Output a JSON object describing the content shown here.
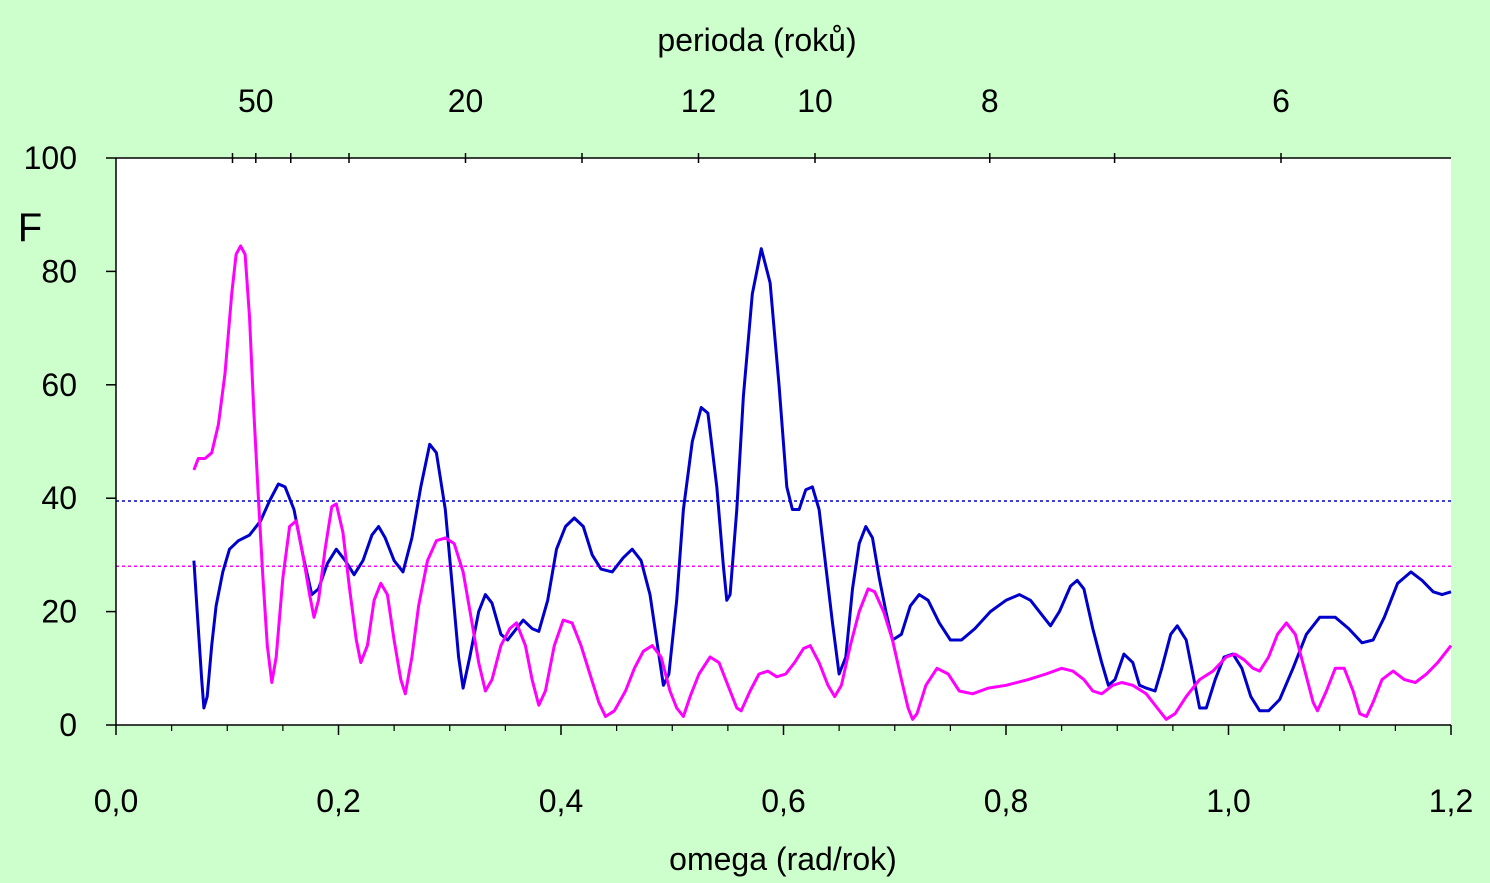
{
  "colors": {
    "background": "#CCFFCC",
    "plot_area": "#FFFFFF",
    "blue_series": "#0000CC",
    "magenta_series": "#FF00FF"
  },
  "chart_data": {
    "type": "line",
    "title": "",
    "xlabel": "omega (rad/rok)",
    "ylabel": "F",
    "top_xlabel": "perioda (roků)",
    "xlim": [
      0.0,
      1.2
    ],
    "ylim": [
      0,
      100
    ],
    "x_ticks": [
      "0,0",
      "0,2",
      "0,4",
      "0,6",
      "0,8",
      "1,0",
      "1,2"
    ],
    "y_ticks": [
      "0",
      "20",
      "40",
      "60",
      "80",
      "100"
    ],
    "top_ticks": [
      {
        "label": "50",
        "period": 50
      },
      {
        "label": "20",
        "period": 20
      },
      {
        "label": "12",
        "period": 12
      },
      {
        "label": "10",
        "period": 10
      },
      {
        "label": "8",
        "period": 8
      },
      {
        "label": "6",
        "period": 6
      }
    ],
    "top_minor_periods": [
      60,
      40,
      30,
      15,
      7
    ],
    "thresholds": [
      {
        "y": 39.5,
        "color": "#0000CC"
      },
      {
        "y": 28,
        "color": "#FF00FF"
      }
    ],
    "grid": false,
    "legend": "none",
    "series": [
      {
        "color": "#0000CC",
        "points": [
          [
            0.07,
            29
          ],
          [
            0.073,
            20
          ],
          [
            0.077,
            8
          ],
          [
            0.079,
            3
          ],
          [
            0.082,
            5
          ],
          [
            0.086,
            14
          ],
          [
            0.09,
            21
          ],
          [
            0.096,
            27
          ],
          [
            0.102,
            31
          ],
          [
            0.11,
            32.5
          ],
          [
            0.12,
            33.5
          ],
          [
            0.13,
            36
          ],
          [
            0.138,
            39.5
          ],
          [
            0.146,
            42.5
          ],
          [
            0.152,
            42
          ],
          [
            0.16,
            38
          ],
          [
            0.168,
            30
          ],
          [
            0.176,
            23
          ],
          [
            0.182,
            24
          ],
          [
            0.19,
            28.5
          ],
          [
            0.198,
            31
          ],
          [
            0.206,
            29
          ],
          [
            0.214,
            26.5
          ],
          [
            0.222,
            29
          ],
          [
            0.23,
            33.5
          ],
          [
            0.236,
            35
          ],
          [
            0.242,
            33
          ],
          [
            0.25,
            29
          ],
          [
            0.258,
            27
          ],
          [
            0.266,
            33
          ],
          [
            0.274,
            42
          ],
          [
            0.282,
            49.5
          ],
          [
            0.288,
            48
          ],
          [
            0.296,
            38
          ],
          [
            0.302,
            25
          ],
          [
            0.308,
            12
          ],
          [
            0.312,
            6.5
          ],
          [
            0.318,
            12
          ],
          [
            0.326,
            20
          ],
          [
            0.332,
            23
          ],
          [
            0.338,
            21.5
          ],
          [
            0.346,
            16
          ],
          [
            0.352,
            15
          ],
          [
            0.36,
            17
          ],
          [
            0.366,
            18.5
          ],
          [
            0.374,
            17
          ],
          [
            0.38,
            16.5
          ],
          [
            0.388,
            22
          ],
          [
            0.396,
            31
          ],
          [
            0.404,
            35
          ],
          [
            0.412,
            36.5
          ],
          [
            0.42,
            35
          ],
          [
            0.428,
            30
          ],
          [
            0.436,
            27.5
          ],
          [
            0.446,
            27
          ],
          [
            0.456,
            29.5
          ],
          [
            0.464,
            31
          ],
          [
            0.472,
            29
          ],
          [
            0.48,
            23
          ],
          [
            0.486,
            15
          ],
          [
            0.492,
            7
          ],
          [
            0.497,
            9
          ],
          [
            0.504,
            22
          ],
          [
            0.51,
            38
          ],
          [
            0.518,
            50
          ],
          [
            0.526,
            56
          ],
          [
            0.532,
            55
          ],
          [
            0.54,
            42
          ],
          [
            0.546,
            28
          ],
          [
            0.549,
            22
          ],
          [
            0.552,
            23
          ],
          [
            0.558,
            38
          ],
          [
            0.564,
            58
          ],
          [
            0.572,
            76
          ],
          [
            0.58,
            84
          ],
          [
            0.588,
            78
          ],
          [
            0.596,
            60
          ],
          [
            0.603,
            42
          ],
          [
            0.608,
            38
          ],
          [
            0.614,
            38
          ],
          [
            0.62,
            41.5
          ],
          [
            0.626,
            42
          ],
          [
            0.632,
            38
          ],
          [
            0.638,
            28
          ],
          [
            0.644,
            18
          ],
          [
            0.65,
            9
          ],
          [
            0.656,
            12
          ],
          [
            0.662,
            24
          ],
          [
            0.668,
            32
          ],
          [
            0.674,
            35
          ],
          [
            0.68,
            33
          ],
          [
            0.686,
            26
          ],
          [
            0.692,
            20
          ],
          [
            0.698,
            15
          ],
          [
            0.706,
            16
          ],
          [
            0.714,
            21
          ],
          [
            0.722,
            23
          ],
          [
            0.73,
            22
          ],
          [
            0.74,
            18
          ],
          [
            0.75,
            15
          ],
          [
            0.76,
            15
          ],
          [
            0.772,
            17
          ],
          [
            0.786,
            20
          ],
          [
            0.8,
            22
          ],
          [
            0.812,
            23
          ],
          [
            0.822,
            22
          ],
          [
            0.834,
            19
          ],
          [
            0.84,
            17.5
          ],
          [
            0.848,
            20
          ],
          [
            0.858,
            24.5
          ],
          [
            0.864,
            25.5
          ],
          [
            0.87,
            24
          ],
          [
            0.878,
            17
          ],
          [
            0.886,
            11
          ],
          [
            0.892,
            7
          ],
          [
            0.898,
            8
          ],
          [
            0.906,
            12.5
          ],
          [
            0.914,
            11
          ],
          [
            0.92,
            7
          ],
          [
            0.926,
            6.5
          ],
          [
            0.934,
            6
          ],
          [
            0.94,
            10
          ],
          [
            0.948,
            16
          ],
          [
            0.954,
            17.5
          ],
          [
            0.962,
            15
          ],
          [
            0.968,
            9
          ],
          [
            0.974,
            3
          ],
          [
            0.98,
            3
          ],
          [
            0.988,
            8
          ],
          [
            0.996,
            12
          ],
          [
            1.004,
            12.5
          ],
          [
            1.012,
            10
          ],
          [
            1.02,
            5
          ],
          [
            1.028,
            2.5
          ],
          [
            1.036,
            2.5
          ],
          [
            1.046,
            4.5
          ],
          [
            1.058,
            10
          ],
          [
            1.07,
            16
          ],
          [
            1.082,
            19
          ],
          [
            1.096,
            19
          ],
          [
            1.108,
            17
          ],
          [
            1.12,
            14.5
          ],
          [
            1.13,
            15
          ],
          [
            1.14,
            19
          ],
          [
            1.152,
            25
          ],
          [
            1.164,
            27
          ],
          [
            1.174,
            25.5
          ],
          [
            1.184,
            23.5
          ],
          [
            1.192,
            23
          ],
          [
            1.2,
            23.5
          ]
        ]
      },
      {
        "color": "#FF00FF",
        "points": [
          [
            0.07,
            45
          ],
          [
            0.074,
            47
          ],
          [
            0.08,
            47
          ],
          [
            0.086,
            48
          ],
          [
            0.092,
            53
          ],
          [
            0.098,
            62
          ],
          [
            0.104,
            76
          ],
          [
            0.108,
            83
          ],
          [
            0.112,
            84.5
          ],
          [
            0.116,
            83
          ],
          [
            0.12,
            72
          ],
          [
            0.124,
            55
          ],
          [
            0.128,
            40
          ],
          [
            0.132,
            26
          ],
          [
            0.136,
            14
          ],
          [
            0.14,
            7.5
          ],
          [
            0.144,
            12
          ],
          [
            0.15,
            26
          ],
          [
            0.156,
            35
          ],
          [
            0.162,
            36
          ],
          [
            0.168,
            30
          ],
          [
            0.174,
            23
          ],
          [
            0.178,
            19
          ],
          [
            0.182,
            22
          ],
          [
            0.188,
            31
          ],
          [
            0.194,
            38.5
          ],
          [
            0.198,
            39
          ],
          [
            0.204,
            34
          ],
          [
            0.21,
            24
          ],
          [
            0.216,
            15
          ],
          [
            0.22,
            11
          ],
          [
            0.226,
            14
          ],
          [
            0.232,
            22
          ],
          [
            0.238,
            25
          ],
          [
            0.244,
            23
          ],
          [
            0.25,
            15
          ],
          [
            0.256,
            8
          ],
          [
            0.26,
            5.5
          ],
          [
            0.266,
            12
          ],
          [
            0.272,
            21
          ],
          [
            0.28,
            29
          ],
          [
            0.288,
            32.5
          ],
          [
            0.296,
            33
          ],
          [
            0.304,
            32
          ],
          [
            0.312,
            27
          ],
          [
            0.32,
            18
          ],
          [
            0.326,
            11
          ],
          [
            0.332,
            6
          ],
          [
            0.338,
            8
          ],
          [
            0.346,
            14
          ],
          [
            0.354,
            17
          ],
          [
            0.36,
            18
          ],
          [
            0.368,
            14
          ],
          [
            0.374,
            8
          ],
          [
            0.38,
            3.5
          ],
          [
            0.386,
            6
          ],
          [
            0.394,
            14
          ],
          [
            0.402,
            18.5
          ],
          [
            0.41,
            18
          ],
          [
            0.418,
            14
          ],
          [
            0.426,
            9
          ],
          [
            0.434,
            4
          ],
          [
            0.44,
            1.5
          ],
          [
            0.448,
            2.5
          ],
          [
            0.458,
            6
          ],
          [
            0.466,
            10
          ],
          [
            0.474,
            13
          ],
          [
            0.482,
            14
          ],
          [
            0.49,
            12
          ],
          [
            0.498,
            6
          ],
          [
            0.504,
            3
          ],
          [
            0.51,
            1.5
          ],
          [
            0.516,
            5
          ],
          [
            0.524,
            9
          ],
          [
            0.534,
            12
          ],
          [
            0.542,
            11
          ],
          [
            0.55,
            7
          ],
          [
            0.558,
            3
          ],
          [
            0.562,
            2.5
          ],
          [
            0.57,
            6
          ],
          [
            0.578,
            9
          ],
          [
            0.586,
            9.5
          ],
          [
            0.594,
            8.5
          ],
          [
            0.602,
            9
          ],
          [
            0.61,
            11
          ],
          [
            0.618,
            13.5
          ],
          [
            0.624,
            14
          ],
          [
            0.632,
            11
          ],
          [
            0.64,
            7
          ],
          [
            0.646,
            5
          ],
          [
            0.652,
            7
          ],
          [
            0.66,
            14
          ],
          [
            0.668,
            20
          ],
          [
            0.676,
            24
          ],
          [
            0.682,
            23.5
          ],
          [
            0.69,
            20
          ],
          [
            0.698,
            15
          ],
          [
            0.706,
            8
          ],
          [
            0.712,
            3
          ],
          [
            0.716,
            1
          ],
          [
            0.72,
            2
          ],
          [
            0.728,
            7
          ],
          [
            0.738,
            10
          ],
          [
            0.748,
            9
          ],
          [
            0.758,
            6
          ],
          [
            0.77,
            5.5
          ],
          [
            0.784,
            6.5
          ],
          [
            0.8,
            7
          ],
          [
            0.82,
            8
          ],
          [
            0.836,
            9
          ],
          [
            0.85,
            10
          ],
          [
            0.86,
            9.5
          ],
          [
            0.87,
            8
          ],
          [
            0.878,
            6
          ],
          [
            0.886,
            5.5
          ],
          [
            0.896,
            7
          ],
          [
            0.904,
            7.5
          ],
          [
            0.914,
            7
          ],
          [
            0.926,
            5.5
          ],
          [
            0.936,
            3
          ],
          [
            0.944,
            1
          ],
          [
            0.952,
            2
          ],
          [
            0.962,
            5
          ],
          [
            0.974,
            8
          ],
          [
            0.986,
            9.5
          ],
          [
            0.998,
            12
          ],
          [
            1.006,
            12.5
          ],
          [
            1.014,
            11.5
          ],
          [
            1.022,
            10
          ],
          [
            1.028,
            9.5
          ],
          [
            1.036,
            12
          ],
          [
            1.044,
            16
          ],
          [
            1.052,
            18
          ],
          [
            1.06,
            16
          ],
          [
            1.068,
            10
          ],
          [
            1.076,
            4
          ],
          [
            1.08,
            2.5
          ],
          [
            1.088,
            6
          ],
          [
            1.096,
            10
          ],
          [
            1.104,
            10
          ],
          [
            1.112,
            6
          ],
          [
            1.118,
            2
          ],
          [
            1.124,
            1.5
          ],
          [
            1.13,
            4
          ],
          [
            1.138,
            8
          ],
          [
            1.148,
            9.5
          ],
          [
            1.158,
            8
          ],
          [
            1.168,
            7.5
          ],
          [
            1.178,
            9
          ],
          [
            1.188,
            11
          ],
          [
            1.2,
            14
          ]
        ]
      }
    ]
  }
}
